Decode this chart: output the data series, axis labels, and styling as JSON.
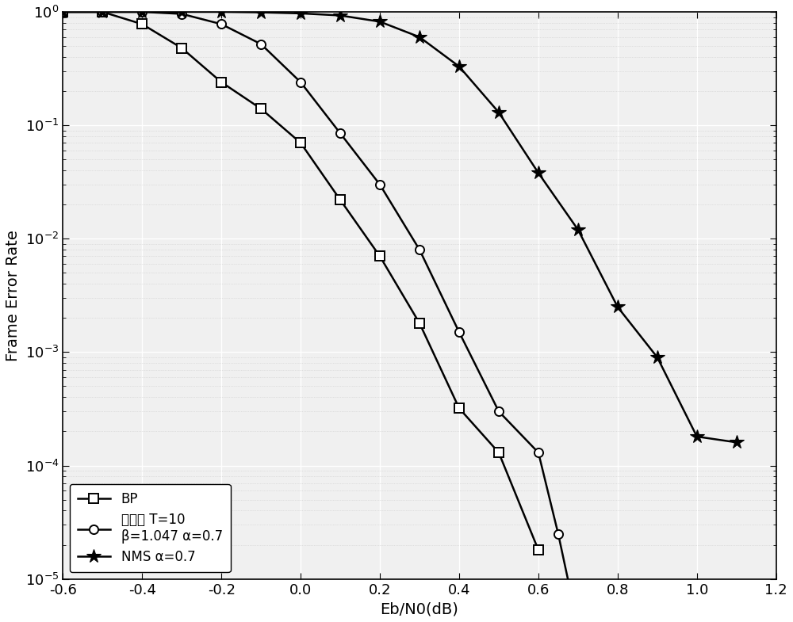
{
  "title": "",
  "xlabel": "Eb/N0(dB)",
  "ylabel": "Frame Error Rate",
  "xlim": [
    -0.6,
    1.2
  ],
  "ylim_log": [
    -5,
    0
  ],
  "background_color": "#ffffff",
  "plot_bg_color": "#f0f0f0",
  "grid_major_color": "#ffffff",
  "grid_minor_color": "#cccccc",
  "BP": {
    "x": [
      -0.6,
      -0.5,
      -0.4,
      -0.3,
      -0.2,
      -0.1,
      0.0,
      0.1,
      0.2,
      0.3,
      0.4,
      0.5,
      0.6
    ],
    "y": [
      1.0,
      1.0,
      0.78,
      0.48,
      0.24,
      0.14,
      0.07,
      0.022,
      0.007,
      0.0018,
      0.00032,
      0.00013,
      1.8e-05
    ],
    "label": "BP",
    "marker": "s",
    "color": "#000000"
  },
  "hybrid": {
    "x": [
      -0.6,
      -0.5,
      -0.4,
      -0.3,
      -0.2,
      -0.1,
      0.0,
      0.1,
      0.2,
      0.3,
      0.4,
      0.5,
      0.6,
      0.65,
      0.7
    ],
    "y": [
      1.0,
      1.0,
      1.0,
      0.96,
      0.78,
      0.52,
      0.24,
      0.085,
      0.03,
      0.008,
      0.0015,
      0.0003,
      0.00013,
      2.5e-05,
      3.8e-06
    ],
    "label": "本发明 T=10\nβ=1.047 α=0.7",
    "marker": "o",
    "color": "#000000"
  },
  "NMS": {
    "x": [
      -0.6,
      -0.5,
      -0.4,
      -0.3,
      -0.2,
      -0.1,
      0.0,
      0.1,
      0.2,
      0.3,
      0.4,
      0.5,
      0.6,
      0.7,
      0.8,
      0.9,
      1.0,
      1.1
    ],
    "y": [
      1.0,
      1.0,
      1.0,
      1.0,
      1.0,
      0.99,
      0.97,
      0.93,
      0.82,
      0.6,
      0.33,
      0.13,
      0.038,
      0.012,
      0.0025,
      0.0009,
      0.00018,
      0.00016
    ],
    "label": "NMS α=0.7",
    "marker": "*",
    "color": "#000000"
  },
  "legend_loc": "lower left",
  "tick_label_fontsize": 13,
  "axis_label_fontsize": 14,
  "legend_fontsize": 12,
  "line_width": 1.8,
  "marker_size": 8,
  "star_marker_size": 13
}
